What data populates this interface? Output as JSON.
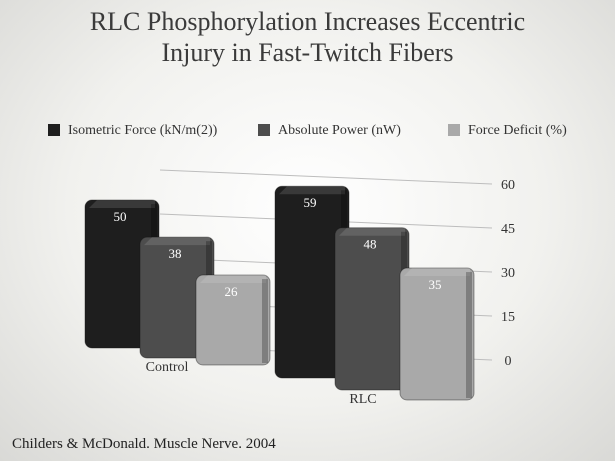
{
  "chart_data": {
    "type": "bar",
    "title": "RLC Phosphorylation Increases Eccentric Injury in Fast-Twitch Fibers",
    "source": "Childers & McDonald. Muscle Nerve. 2004",
    "categories": [
      "Control",
      "RLC"
    ],
    "series": [
      {
        "name": "Isometric Force (kN/m(2))",
        "color": "#1e1e1e",
        "values": [
          50,
          59
        ]
      },
      {
        "name": "Absolute Power (nW)",
        "color": "#4d4d4d",
        "values": [
          38,
          48
        ]
      },
      {
        "name": "Force Deficit (%)",
        "color": "#a9a9a9",
        "values": [
          26,
          35
        ]
      }
    ],
    "ylim": [
      0,
      60
    ],
    "yticks": [
      0,
      15,
      30,
      45,
      60
    ],
    "grid": true,
    "legend": "top"
  }
}
